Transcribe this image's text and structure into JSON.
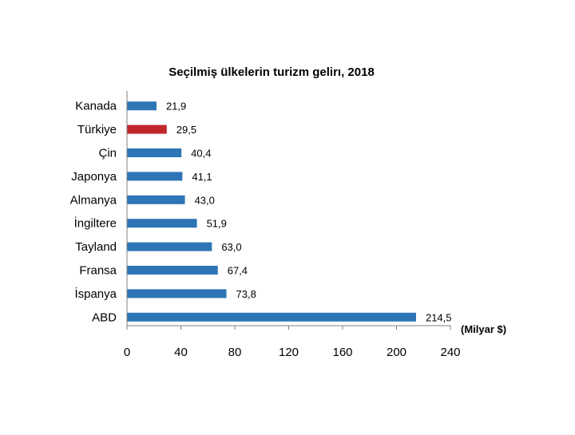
{
  "chart_data": {
    "type": "bar",
    "orientation": "horizontal",
    "title": "Seçilmiş ülkelerin turizm gelirı, 2018",
    "xlabel": "(Milyar $)",
    "ylabel": "",
    "xlim": [
      0,
      240
    ],
    "x_ticks": [
      "0",
      "40",
      "80",
      "120",
      "160",
      "200",
      "240"
    ],
    "grid": false,
    "categories": [
      "Kanada",
      "Türkiye",
      "Çin",
      "Japonya",
      "Almanya",
      "İngiltere",
      "Tayland",
      "Fransa",
      "İspanya",
      "ABD"
    ],
    "values": [
      21.9,
      29.5,
      40.4,
      41.1,
      43.0,
      51.9,
      63.0,
      67.4,
      73.8,
      214.5
    ],
    "value_labels": [
      "21,9",
      "29,5",
      "40,4",
      "41,1",
      "43,0",
      "51,9",
      "63,0",
      "67,4",
      "73,8",
      "214,5"
    ],
    "colors": {
      "default_bar": "#2e75b6",
      "highlight_bar": "#c0272d",
      "axis": "#7f7f7f"
    },
    "highlight_category": "Türkiye"
  }
}
